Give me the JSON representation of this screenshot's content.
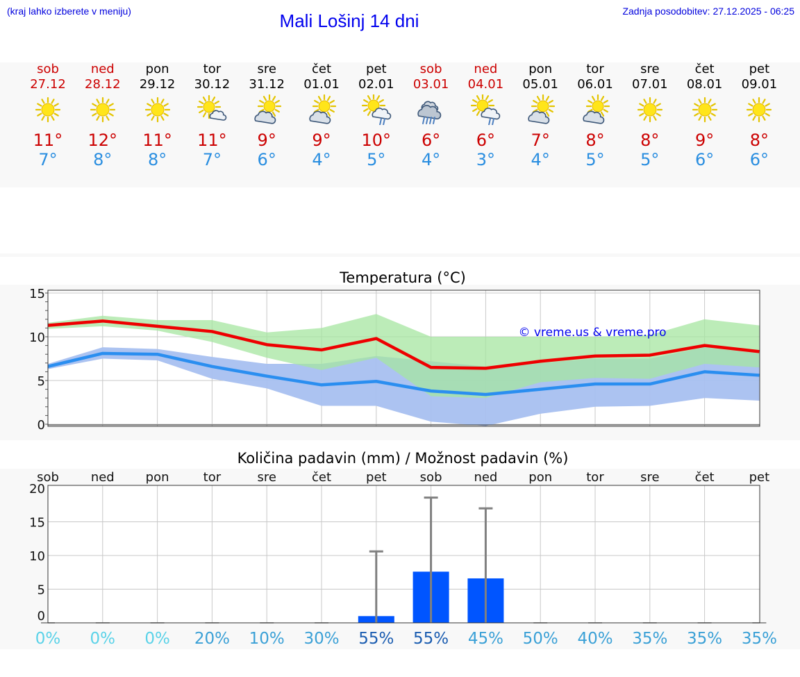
{
  "header": {
    "hint": "(kraj lahko izberete v meniju)",
    "title": "Mali Lošinj 14 dni",
    "updated": "Zadnja posodobitev: 27.12.2025 - 06:25"
  },
  "forecast": [
    {
      "day": "sob",
      "date": "27.12",
      "weekend": true,
      "icon": "sunny-icon",
      "max": "11°",
      "min": "7°"
    },
    {
      "day": "ned",
      "date": "28.12",
      "weekend": true,
      "icon": "sunny-icon",
      "max": "12°",
      "min": "8°"
    },
    {
      "day": "pon",
      "date": "29.12",
      "weekend": false,
      "icon": "sunny-icon",
      "max": "11°",
      "min": "8°"
    },
    {
      "day": "tor",
      "date": "30.12",
      "weekend": false,
      "icon": "sun-small-cloud-icon",
      "max": "11°",
      "min": "7°"
    },
    {
      "day": "sre",
      "date": "31.12",
      "weekend": false,
      "icon": "partly-cloudy-icon",
      "max": "9°",
      "min": "6°"
    },
    {
      "day": "čet",
      "date": "01.01",
      "weekend": false,
      "icon": "partly-cloudy-icon",
      "max": "9°",
      "min": "4°"
    },
    {
      "day": "pet",
      "date": "02.01",
      "weekend": false,
      "icon": "sun-rain-icon",
      "max": "10°",
      "min": "5°"
    },
    {
      "day": "sob",
      "date": "03.01",
      "weekend": true,
      "icon": "cloudy-rain-icon",
      "max": "6°",
      "min": "4°"
    },
    {
      "day": "ned",
      "date": "04.01",
      "weekend": true,
      "icon": "sun-rain-icon",
      "max": "6°",
      "min": "3°"
    },
    {
      "day": "pon",
      "date": "05.01",
      "weekend": false,
      "icon": "partly-cloudy-icon",
      "max": "7°",
      "min": "4°"
    },
    {
      "day": "tor",
      "date": "06.01",
      "weekend": false,
      "icon": "partly-cloudy-icon",
      "max": "8°",
      "min": "5°"
    },
    {
      "day": "sre",
      "date": "07.01",
      "weekend": false,
      "icon": "sunny-icon",
      "max": "8°",
      "min": "5°"
    },
    {
      "day": "čet",
      "date": "08.01",
      "weekend": false,
      "icon": "sunny-icon",
      "max": "9°",
      "min": "6°"
    },
    {
      "day": "pet",
      "date": "09.01",
      "weekend": false,
      "icon": "sunny-icon",
      "max": "8°",
      "min": "6°"
    }
  ],
  "chart_data": [
    {
      "type": "line",
      "title": "Temperatura (°C)",
      "watermark": "© vreme.us & vreme.pro",
      "xlabel": "",
      "ylabel": "",
      "ylim": [
        0,
        15.5
      ],
      "yticks": [
        0,
        5,
        10,
        15
      ],
      "categories": [
        "sob",
        "ned",
        "pon",
        "tor",
        "sre",
        "čet",
        "pet",
        "sob",
        "ned",
        "pon",
        "tor",
        "sre",
        "čet",
        "pet"
      ],
      "colors": {
        "max": "#ee0000",
        "min": "#2a8ef0",
        "max_band": "#a6e6a0",
        "min_band": "#a8c0f0"
      },
      "series": [
        {
          "name": "max",
          "values": [
            11.3,
            11.8,
            11.2,
            10.6,
            9.1,
            8.5,
            9.8,
            6.5,
            6.4,
            7.2,
            7.8,
            7.9,
            9.0,
            8.3
          ],
          "band_low": [
            10.9,
            11.2,
            10.7,
            9.4,
            7.6,
            6.2,
            7.6,
            3.2,
            3.0,
            4.8,
            5.3,
            5.2,
            6.9,
            6.5
          ],
          "band_high": [
            11.6,
            12.4,
            11.9,
            11.9,
            10.5,
            11.0,
            12.6,
            10.0,
            10.0,
            10.0,
            10.0,
            10.2,
            12.0,
            11.3
          ]
        },
        {
          "name": "min",
          "values": [
            6.6,
            8.1,
            8.0,
            6.6,
            5.5,
            4.5,
            4.9,
            3.8,
            3.4,
            4.0,
            4.6,
            4.6,
            6.0,
            5.6
          ],
          "band_low": [
            6.3,
            7.5,
            7.3,
            5.2,
            4.1,
            2.1,
            2.1,
            0.3,
            -0.2,
            1.2,
            2.0,
            2.1,
            3.0,
            2.7
          ],
          "band_high": [
            6.9,
            8.8,
            8.6,
            7.7,
            6.9,
            6.9,
            7.8,
            7.2,
            6.6,
            7.0,
            7.5,
            7.5,
            8.8,
            8.1
          ]
        }
      ]
    },
    {
      "type": "bar",
      "title": "Količina padavin (mm) / Možnost padavin (%)",
      "xlabel": "",
      "ylabel": "",
      "ylim": [
        0,
        20
      ],
      "yticks": [
        0,
        5,
        10,
        15,
        20
      ],
      "categories": [
        "sob",
        "ned",
        "pon",
        "tor",
        "sre",
        "čet",
        "pet",
        "sob",
        "ned",
        "pon",
        "tor",
        "sre",
        "čet",
        "pet"
      ],
      "colors": {
        "bar": "#0055ff",
        "whisker": "#808080"
      },
      "values": [
        0,
        0,
        0,
        0,
        0,
        0,
        1.0,
        7.6,
        6.6,
        0,
        0,
        0,
        0,
        0
      ],
      "error_max": [
        0,
        0,
        0,
        0,
        0,
        0,
        10.6,
        18.6,
        17.0,
        0,
        0,
        0,
        0,
        0
      ],
      "probability": [
        "0%",
        "0%",
        "0%",
        "20%",
        "10%",
        "30%",
        "55%",
        "55%",
        "45%",
        "50%",
        "40%",
        "35%",
        "35%",
        "35%"
      ],
      "probability_colors": [
        "#5ad2e8",
        "#5ad2e8",
        "#5ad2e8",
        "#3aa0d6",
        "#3aa0d6",
        "#3aa0d6",
        "#1a5cb0",
        "#1a5cb0",
        "#3aa0d6",
        "#3aa0d6",
        "#3aa0d6",
        "#3aa0d6",
        "#3aa0d6",
        "#3aa0d6"
      ]
    }
  ]
}
